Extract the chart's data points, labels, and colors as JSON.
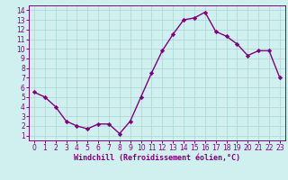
{
  "x": [
    0,
    1,
    2,
    3,
    4,
    5,
    6,
    7,
    8,
    9,
    10,
    11,
    12,
    13,
    14,
    15,
    16,
    17,
    18,
    19,
    20,
    21,
    22,
    23
  ],
  "y": [
    5.5,
    5.0,
    4.0,
    2.5,
    2.0,
    1.7,
    2.2,
    2.2,
    1.2,
    2.5,
    5.0,
    7.5,
    9.8,
    11.5,
    13.0,
    13.2,
    13.8,
    11.8,
    11.3,
    10.5,
    9.3,
    9.8,
    9.8,
    7.0
  ],
  "line_color": "#800080",
  "marker": "D",
  "marker_size": 2.2,
  "linewidth": 1.0,
  "bg_color": "#cff0ee",
  "grid_color": "#b0d8d8",
  "xlabel": "Windchill (Refroidissement éolien,°C)",
  "ylabel_ticks": [
    1,
    2,
    3,
    4,
    5,
    6,
    7,
    8,
    9,
    10,
    11,
    12,
    13,
    14
  ],
  "xlabel_ticks": [
    0,
    1,
    2,
    3,
    4,
    5,
    6,
    7,
    8,
    9,
    10,
    11,
    12,
    13,
    14,
    15,
    16,
    17,
    18,
    19,
    20,
    21,
    22,
    23
  ],
  "xlim": [
    -0.5,
    23.5
  ],
  "ylim": [
    0.5,
    14.5
  ],
  "tick_label_fontsize": 5.5,
  "xlabel_fontsize": 6.0,
  "spine_color": "#800080"
}
